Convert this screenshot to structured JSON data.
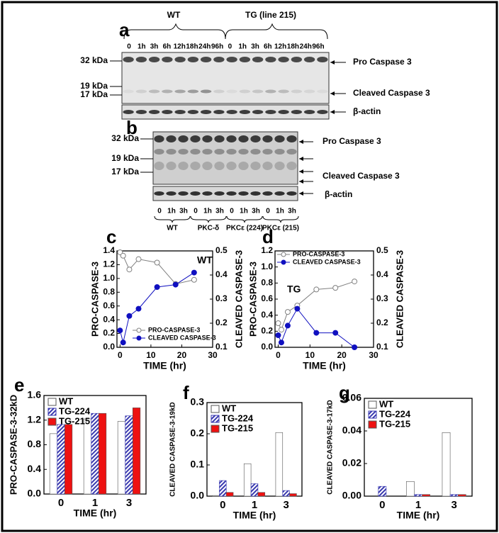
{
  "blot_a": {
    "letter": "a",
    "groups": [
      "WT",
      "TG (line 215)"
    ],
    "lanes": [
      "0",
      "1h",
      "3h",
      "6h",
      "12h",
      "18h",
      "24h",
      "96h",
      "0",
      "1h",
      "3h",
      "6h",
      "12h",
      "18h",
      "24h",
      "96h"
    ],
    "markers": [
      "32 kDa",
      "19 kDa",
      "17 kDa"
    ],
    "bands": [
      "Pro Caspase 3",
      "Cleaved Caspase 3",
      "β-actin"
    ]
  },
  "blot_b": {
    "letter": "b",
    "markers": [
      "32 kDa",
      "19 kDa",
      "17 kDa"
    ],
    "bands": [
      "Pro Caspase 3",
      "Cleaved Caspase 3",
      "β-actin"
    ],
    "lanes": [
      "0",
      "1h",
      "3h",
      "0",
      "1h",
      "3h",
      "0",
      "1h",
      "3h",
      "0",
      "1h",
      "3h"
    ],
    "groups": [
      "WT",
      "PKC-δ",
      "PKCε (224)",
      "PKCε (215)"
    ]
  },
  "chart_data": [
    {
      "type": "line",
      "panel": "c",
      "annotation": "WT",
      "x_label": "TIME (hr)",
      "y_label": "PRO-CASPASE-3",
      "y2_label": "CLEAVED CASPASE-3",
      "x": [
        0,
        1,
        3,
        6,
        12,
        18,
        24
      ],
      "xlim": [
        -1,
        30
      ],
      "xticks": [
        0,
        10,
        20,
        30
      ],
      "ylim": [
        0,
        1.4
      ],
      "yticks": [
        {
          "value": 0,
          "label": "0.0"
        },
        0.2,
        0.4,
        0.6,
        0.8,
        {
          "value": 1,
          "label": "1.0"
        },
        1.2,
        1.4
      ],
      "y2lim": [
        0.1,
        0.5
      ],
      "y2ticks": [
        0.1,
        0.2,
        0.3,
        0.4,
        0.5
      ],
      "legend": "lower right",
      "series": [
        {
          "name": "PRO-CASPASE-3",
          "color": "#808080",
          "marker_filled": false,
          "values": [
            1.38,
            1.33,
            1.13,
            1.28,
            1.23,
            0.92,
            0.98
          ]
        },
        {
          "name": "CLEAVED CASPASE-3",
          "color": "#1010c0",
          "marker_filled": true,
          "axis": "y2",
          "values": [
            0.17,
            0.12,
            0.23,
            0.26,
            0.35,
            0.36,
            0.41
          ]
        }
      ]
    },
    {
      "type": "line",
      "panel": "d",
      "annotation": "TG",
      "x_label": "TIME (hr)",
      "y_label": "PRO-CASPASE-3",
      "y2_label": "CLEAVED CASPASE-3",
      "x": [
        0,
        1,
        3,
        6,
        12,
        18,
        24
      ],
      "xlim": [
        -1,
        30
      ],
      "xticks": [
        0,
        10,
        20,
        30
      ],
      "ylim": [
        0,
        1.2
      ],
      "yticks": [
        {
          "value": 0,
          "label": "0.0"
        },
        0.2,
        0.4,
        0.6,
        0.8,
        {
          "value": 1,
          "label": "1.0"
        },
        1.2
      ],
      "y2lim": [
        0.1,
        0.5
      ],
      "y2ticks": [
        0.1,
        0.2,
        0.3,
        0.4,
        0.5
      ],
      "legend": "upper left",
      "series": [
        {
          "name": "PRO-CASPASE-3",
          "color": "#808080",
          "marker_filled": false,
          "values": [
            0.3,
            0.22,
            0.44,
            0.52,
            0.72,
            0.74,
            0.82
          ]
        },
        {
          "name": "CLEAVED CASPASE-3",
          "color": "#1010c0",
          "marker_filled": true,
          "axis": "y2",
          "values": [
            0.15,
            0.12,
            0.19,
            0.26,
            0.16,
            0.16,
            0.1
          ]
        }
      ]
    },
    {
      "type": "bar",
      "panel": "e",
      "x_label": "TIME (hr)",
      "y_label": "PRO-CASPASE-3-32kD",
      "categories": [
        "0",
        "1",
        "3"
      ],
      "ylim": [
        0,
        1.6
      ],
      "yticks": [
        {
          "value": 0,
          "label": "0.0"
        },
        0.4,
        0.8,
        1.2,
        1.6
      ],
      "legend": "upper left",
      "series": [
        {
          "name": "WT",
          "color": "#ffffff",
          "values": [
            0.98,
            1.22,
            1.18
          ]
        },
        {
          "name": "TG-224",
          "color": "#3a3ab0",
          "hatch": true,
          "values": [
            1.13,
            1.31,
            1.27
          ]
        },
        {
          "name": "TG-215",
          "color": "#ee1111",
          "values": [
            1.13,
            1.31,
            1.4
          ]
        }
      ]
    },
    {
      "type": "bar",
      "panel": "f",
      "x_label": "TIME (hr)",
      "y_label": "CLEAVED CASPASE-3-19kD",
      "categories": [
        "0",
        "1",
        "3"
      ],
      "ylim": [
        0,
        0.3
      ],
      "yticks": [
        {
          "value": 0,
          "label": "0.0"
        },
        0.1,
        0.2,
        0.3
      ],
      "legend": "upper left",
      "series": [
        {
          "name": "WT",
          "color": "#ffffff",
          "values": [
            0.002,
            0.104,
            0.204
          ]
        },
        {
          "name": "TG-224",
          "color": "#3a3ab0",
          "hatch": true,
          "values": [
            0.05,
            0.04,
            0.018
          ]
        },
        {
          "name": "TG-215",
          "color": "#ee1111",
          "values": [
            0.012,
            0.012,
            0.008
          ]
        }
      ]
    },
    {
      "type": "bar",
      "panel": "g",
      "x_label": "TIME (hr)",
      "y_label": "CLEAVED CASPASE-3-17kD",
      "categories": [
        "0",
        "1",
        "3"
      ],
      "ylim": [
        0,
        0.06
      ],
      "yticks": [
        {
          "value": 0,
          "label": "0.00"
        },
        {
          "value": 0.02,
          "label": "0.02"
        },
        {
          "value": 0.04,
          "label": "0.04"
        },
        {
          "value": 0.06,
          "label": "0.06"
        }
      ],
      "legend": "upper left",
      "series": [
        {
          "name": "WT",
          "color": "#ffffff",
          "values": [
            0,
            0.009,
            0.039
          ]
        },
        {
          "name": "TG-224",
          "color": "#3a3ab0",
          "hatch": true,
          "values": [
            0.006,
            0.001,
            0.001
          ]
        },
        {
          "name": "TG-215",
          "color": "#ee1111",
          "values": [
            0,
            0.001,
            0.001
          ]
        }
      ]
    }
  ]
}
